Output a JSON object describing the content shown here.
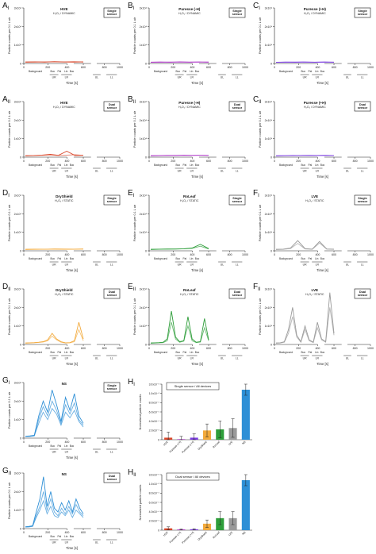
{
  "figure": {
    "x_axis_title": "Time [s]",
    "y_axis_title": "Particle counts per 0.1 L air",
    "x_ticks": [
      "0",
      "200",
      "400",
      "600",
      "800",
      "1000"
    ],
    "phase_labels": [
      "Background",
      "Buc",
      "Pal",
      "Lin",
      "Buc"
    ],
    "group_labels": [
      "UR",
      "LR",
      "UL",
      "LL"
    ]
  },
  "chart_data": [
    {
      "id": "A_I",
      "letter": "A",
      "sub": "I",
      "type": "line",
      "title": "HVE",
      "subtitle": "H₂O₂ / DYNAMIC",
      "sensor": "Single sensor",
      "color": "#d9472b",
      "ylim": [
        0,
        30000
      ],
      "y_ticks": [
        "0",
        "1x10⁴",
        "2x10⁴",
        "3x10⁴"
      ],
      "series": [
        {
          "values": [
            800,
            900,
            750,
            1000,
            850,
            950,
            800
          ]
        },
        {
          "values": [
            700,
            750,
            900,
            850,
            800,
            700,
            900
          ]
        }
      ]
    },
    {
      "id": "B_I",
      "letter": "B",
      "sub": "I",
      "type": "line",
      "title": "Puresse (-H)",
      "subtitle": "H₂O₂ / DYNAMIC",
      "sensor": "Single sensor",
      "color": "#b03cc9",
      "ylim": [
        0,
        30000
      ],
      "y_ticks": [
        "0",
        "1x10⁴",
        "2x10⁴",
        "3x10⁴"
      ],
      "series": [
        {
          "values": [
            700,
            800,
            650,
            900,
            750,
            820,
            700
          ]
        },
        {
          "values": [
            600,
            650,
            800,
            700,
            650,
            750,
            800
          ]
        }
      ]
    },
    {
      "id": "C_I",
      "letter": "C",
      "sub": "I",
      "type": "line",
      "title": "Puresse (+H)",
      "subtitle": "H₂O₂ / DYNAMIC",
      "sensor": "Single sensor",
      "color": "#7a3ce0",
      "ylim": [
        0,
        30000
      ],
      "y_ticks": [
        "0",
        "1x10⁴",
        "2x10⁴",
        "3x10⁴"
      ],
      "series": [
        {
          "values": [
            650,
            780,
            700,
            850,
            720,
            800,
            680
          ]
        },
        {
          "values": [
            600,
            700,
            750,
            680,
            640,
            720,
            760
          ]
        }
      ]
    },
    {
      "id": "A_II",
      "letter": "A",
      "sub": "II",
      "type": "line",
      "title": "HVE",
      "subtitle": "H₂O₂ / DYNAMIC",
      "sensor": "Dual sensor",
      "color": "#d9472b",
      "ylim": [
        0,
        30000
      ],
      "y_ticks": [
        "0",
        "1x10⁴",
        "2x10⁴",
        "3x10⁴"
      ],
      "series": [
        {
          "values": [
            800,
            900,
            1100,
            1500,
            1000,
            3200,
            900,
            1000
          ]
        },
        {
          "values": [
            700,
            850,
            1000,
            1200,
            900,
            1100,
            1300,
            1000
          ]
        }
      ]
    },
    {
      "id": "B_II",
      "letter": "B",
      "sub": "II",
      "type": "line",
      "title": "Puresse (-H)",
      "subtitle": "H₂O₂ / DYNAMIC",
      "sensor": "Dual sensor",
      "color": "#b03cc9",
      "ylim": [
        0,
        30000
      ],
      "y_ticks": [
        "0",
        "1x10⁴",
        "2x10⁴",
        "3x10⁴"
      ],
      "series": [
        {
          "values": [
            800,
            900,
            1000,
            950,
            1100,
            1000,
            1050,
            980
          ]
        },
        {
          "values": [
            700,
            800,
            900,
            1000,
            950,
            900,
            1000,
            900
          ]
        }
      ]
    },
    {
      "id": "C_II",
      "letter": "C",
      "sub": "II",
      "type": "line",
      "title": "Puresse (+H)",
      "subtitle": "H₂O₂ / DYNAMIC",
      "sensor": "Dual sensor",
      "color": "#7a3ce0",
      "ylim": [
        0,
        30000
      ],
      "y_ticks": [
        "0",
        "1x10⁴",
        "2x10⁴",
        "3x10⁴"
      ],
      "series": [
        {
          "values": [
            750,
            850,
            950,
            900,
            1000,
            950,
            980,
            900
          ]
        },
        {
          "values": [
            650,
            780,
            850,
            950,
            900,
            880,
            950,
            870
          ]
        }
      ]
    },
    {
      "id": "D_I",
      "letter": "D",
      "sub": "I",
      "type": "line",
      "title": "DryShield",
      "subtitle": "H₂O₂ / STATIC",
      "sensor": "Single sensor",
      "color": "#f2a93b",
      "ylim": [
        0,
        30000
      ],
      "y_ticks": [
        "0",
        "1x10⁴",
        "2x10⁴",
        "3x10⁴"
      ],
      "series": [
        {
          "values": [
            800,
            900,
            850,
            1000,
            950,
            900,
            1000
          ]
        },
        {
          "values": [
            700,
            800,
            900,
            850,
            800,
            850,
            900
          ]
        }
      ]
    },
    {
      "id": "E_I",
      "letter": "E",
      "sub": "I",
      "type": "line",
      "title": "RoLeaf",
      "subtitle": "H₂O₂ / STATIC",
      "sensor": "Single sensor",
      "color": "#2e9e3a",
      "ylim": [
        0,
        30000
      ],
      "y_ticks": [
        "0",
        "1x10⁴",
        "2x10⁴",
        "3x10⁴"
      ],
      "series": [
        {
          "values": [
            800,
            900,
            1000,
            950,
            1100,
            1500,
            3500,
            1200
          ]
        },
        {
          "values": [
            700,
            850,
            900,
            1000,
            1050,
            1300,
            2500,
            1000
          ]
        }
      ]
    },
    {
      "id": "F_I",
      "letter": "F",
      "sub": "I",
      "type": "line",
      "title": "LVE",
      "subtitle": "H₂O₂ / STATIC",
      "sensor": "Single sensor",
      "color": "#9a9a9a",
      "ylim": [
        0,
        30000
      ],
      "y_ticks": [
        "0",
        "1x10⁴",
        "2x10⁴",
        "3x10⁴"
      ],
      "series": [
        {
          "values": [
            800,
            900,
            1500,
            5500,
            1200,
            900,
            5000,
            1000,
            900
          ]
        },
        {
          "values": [
            700,
            800,
            1200,
            4000,
            1000,
            800,
            4200,
            900,
            800
          ]
        }
      ]
    },
    {
      "id": "D_II",
      "letter": "D",
      "sub": "II",
      "type": "line",
      "title": "DryShield",
      "subtitle": "H₂O₂ / STATIC",
      "sensor": "Dual sensor",
      "color": "#f2a93b",
      "ylim": [
        0,
        30000
      ],
      "y_ticks": [
        "0",
        "1x10⁴",
        "2x10⁴",
        "3x10⁴"
      ],
      "series": [
        {
          "values": [
            800,
            900,
            1000,
            1200,
            1500,
            2500,
            6000,
            3000,
            1500,
            900,
            1000,
            2000,
            12000,
            3000
          ]
        },
        {
          "values": [
            700,
            800,
            900,
            1100,
            1300,
            2000,
            4500,
            2500,
            1200,
            800,
            900,
            1500,
            8000,
            2000
          ]
        }
      ]
    },
    {
      "id": "E_II",
      "letter": "E",
      "sub": "II",
      "type": "line",
      "title": "RoLeaf",
      "subtitle": "H₂O₂ / STATIC",
      "sensor": "Dual sensor",
      "color": "#2e9e3a",
      "ylim": [
        0,
        30000
      ],
      "y_ticks": [
        "0",
        "1x10⁴",
        "2x10⁴",
        "3x10⁴"
      ],
      "series": [
        {
          "values": [
            800,
            900,
            1000,
            1200,
            3000,
            18000,
            4000,
            1500,
            2000,
            15000,
            3000,
            1200,
            1500,
            14000,
            2500
          ]
        },
        {
          "values": [
            700,
            800,
            900,
            1000,
            2000,
            12000,
            3000,
            1200,
            1800,
            10000,
            2000,
            1000,
            1300,
            9000,
            2000
          ]
        }
      ]
    },
    {
      "id": "F_II",
      "letter": "F",
      "sub": "II",
      "type": "line",
      "title": "LVE",
      "subtitle": "H₂O₂ / STATIC",
      "sensor": "Dual sensor",
      "color": "#9a9a9a",
      "ylim": [
        0,
        30000
      ],
      "y_ticks": [
        "0",
        "1x10⁴",
        "2x10⁴",
        "3x10⁴"
      ],
      "series": [
        {
          "values": [
            800,
            900,
            1500,
            8000,
            20000,
            5000,
            1500,
            10000,
            2500,
            1200,
            12000,
            3000,
            1500,
            28000,
            6000
          ]
        },
        {
          "values": [
            700,
            800,
            1200,
            6000,
            15000,
            4000,
            1200,
            8000,
            2000,
            1000,
            9000,
            2500,
            1200,
            20000,
            5000
          ]
        }
      ]
    },
    {
      "id": "G_I",
      "letter": "G",
      "sub": "I",
      "type": "line",
      "title": "NS",
      "subtitle": "",
      "sensor": "Single sensor",
      "color": "#2d8fd6",
      "ylim": [
        0,
        30000
      ],
      "y_ticks": [
        "0",
        "1x10⁴",
        "2x10⁴",
        "3x10⁴"
      ],
      "series": [
        {
          "values": [
            1000,
            1200,
            1500,
            12000,
            20000,
            14000,
            26000,
            18000,
            9000,
            22000,
            15000,
            24000,
            12000,
            8000
          ]
        },
        {
          "values": [
            900,
            1000,
            1300,
            10000,
            17000,
            12000,
            20000,
            15000,
            8000,
            18000,
            13000,
            19000,
            10000,
            7000
          ]
        },
        {
          "values": [
            800,
            900,
            1200,
            8000,
            14000,
            10000,
            16000,
            13000,
            7000,
            14000,
            11000,
            15000,
            9000,
            6000
          ]
        }
      ]
    },
    {
      "id": "G_II",
      "letter": "G",
      "sub": "II",
      "type": "line",
      "title": "NS",
      "subtitle": "",
      "sensor": "Dual sensor",
      "color": "#2d8fd6",
      "ylim": [
        0,
        30000
      ],
      "y_ticks": [
        "0",
        "1x10⁴",
        "2x10⁴",
        "3x10⁴"
      ],
      "series": [
        {
          "values": [
            1000,
            1200,
            1500,
            9000,
            16000,
            28000,
            12000,
            20000,
            11000,
            9000,
            14000,
            10000,
            15000,
            9000,
            16000,
            11000,
            8000
          ]
        },
        {
          "values": [
            900,
            1000,
            1300,
            7000,
            12000,
            20000,
            10000,
            16000,
            9000,
            7000,
            11000,
            8000,
            12000,
            8000,
            13000,
            9000,
            7000
          ]
        },
        {
          "values": [
            800,
            900,
            1200,
            6000,
            10000,
            15000,
            8000,
            12000,
            7000,
            6000,
            9000,
            7000,
            10000,
            6000,
            10000,
            8000,
            6000
          ]
        }
      ]
    },
    {
      "id": "H_I",
      "letter": "H",
      "sub": "I",
      "type": "bar",
      "title": "Single sensor / All devices",
      "ylabel": "Normalized particle counts",
      "y_ticks": [
        "0",
        "2.0x10⁻⁶",
        "4.0x10⁻⁶",
        "6.0x10⁻⁶",
        "8.0x10⁻⁶",
        "1.0x10⁻⁵",
        "3.0x10⁻⁵"
      ],
      "ylim": [
        0,
        30
      ],
      "categories": [
        "HVE",
        "Puresse (-H)",
        "Puresse (+H)",
        "DryShield",
        "RoLeaf",
        "LVE",
        "NS"
      ],
      "values": [
        1.1,
        0.3,
        1.1,
        5.0,
        5.6,
        6.3,
        27
      ],
      "errors": [
        3.0,
        1.5,
        2.0,
        3.5,
        4.5,
        5.0,
        3
      ],
      "colors": [
        "#d9472b",
        "#b03cc9",
        "#7a3ce0",
        "#f2a93b",
        "#2e9e3a",
        "#9a9a9a",
        "#2d8fd6"
      ]
    },
    {
      "id": "H_II",
      "letter": "H",
      "sub": "II",
      "type": "bar",
      "title": "Dual sensor / All devices",
      "ylabel": "Normalized particle counts",
      "y_ticks": [
        "0",
        "2.0x10⁻⁶",
        "4.0x10⁻⁶",
        "6.0x10⁻⁶",
        "8.0x10⁻⁶",
        "1.0x10⁻⁵",
        "3.0x10⁻⁵"
      ],
      "ylim": [
        0,
        30
      ],
      "categories": [
        "HVE",
        "Puresse (-H)",
        "Puresse (+H)",
        "DryShield",
        "RoLeaf",
        "LVE",
        "NS"
      ],
      "values": [
        1.0,
        0.4,
        0.5,
        3.5,
        6.5,
        6.5,
        27
      ],
      "errors": [
        0.8,
        0.2,
        0.3,
        2.0,
        3.5,
        3.5,
        3
      ],
      "colors": [
        "#d9472b",
        "#b03cc9",
        "#7a3ce0",
        "#f2a93b",
        "#2e9e3a",
        "#9a9a9a",
        "#2d8fd6"
      ]
    }
  ]
}
